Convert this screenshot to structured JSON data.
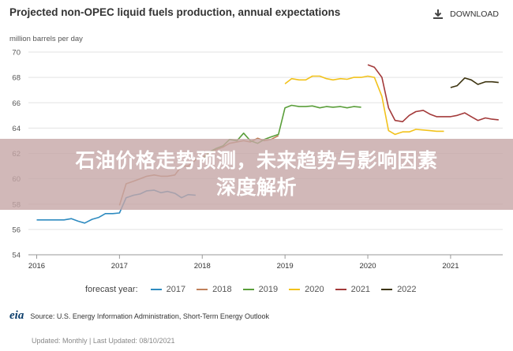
{
  "header": {
    "title": "Projected non-OPEC liquid fuels production, annual expectations",
    "download_label": "DOWNLOAD",
    "download_icon": "download-icon"
  },
  "overlay": {
    "line1": "石油价格走势预测，未来趋势与影响因素",
    "line2": "深度解析"
  },
  "footer": {
    "logo_text": "eia",
    "source": "Source: U.S. Energy Information Administration, Short-Term Energy Outlook",
    "updated": "Updated: Monthly | Last Updated: 08/10/2021"
  },
  "legend": {
    "label": "forecast year:"
  },
  "chart_data": {
    "type": "line",
    "ylabel": "million barrels per day",
    "ylim": [
      54,
      70
    ],
    "yticks": [
      54,
      56,
      58,
      60,
      62,
      64,
      66,
      68,
      70
    ],
    "xlim": [
      2015.9,
      2021.63
    ],
    "xticks": [
      2016,
      2017,
      2018,
      2019,
      2020,
      2021
    ],
    "xtick_labels": [
      "2016",
      "2017",
      "2018",
      "2019",
      "2020",
      "2021"
    ],
    "grid": true,
    "series": [
      {
        "name": "2017",
        "color": "#2e8bc0",
        "points": [
          [
            2016.0,
            56.75
          ],
          [
            2016.08,
            56.75
          ],
          [
            2016.17,
            56.75
          ],
          [
            2016.25,
            56.75
          ],
          [
            2016.33,
            56.75
          ],
          [
            2016.42,
            56.85
          ],
          [
            2016.5,
            56.65
          ],
          [
            2016.58,
            56.5
          ],
          [
            2016.67,
            56.8
          ],
          [
            2016.75,
            56.95
          ],
          [
            2016.83,
            57.25
          ],
          [
            2016.92,
            57.25
          ],
          [
            2017.0,
            57.3
          ],
          [
            2017.08,
            58.5
          ],
          [
            2017.17,
            58.7
          ],
          [
            2017.25,
            58.8
          ],
          [
            2017.33,
            59.05
          ],
          [
            2017.42,
            59.1
          ],
          [
            2017.5,
            58.9
          ],
          [
            2017.58,
            59.0
          ],
          [
            2017.67,
            58.85
          ],
          [
            2017.75,
            58.5
          ],
          [
            2017.83,
            58.75
          ],
          [
            2017.92,
            58.7
          ]
        ]
      },
      {
        "name": "2018",
        "color": "#c0805a",
        "points": [
          [
            2017.0,
            57.9
          ],
          [
            2017.08,
            59.6
          ],
          [
            2017.17,
            59.8
          ],
          [
            2017.25,
            60.0
          ],
          [
            2017.33,
            60.2
          ],
          [
            2017.42,
            60.3
          ],
          [
            2017.5,
            60.2
          ],
          [
            2017.58,
            60.2
          ],
          [
            2017.67,
            60.3
          ],
          [
            2017.75,
            61.0
          ],
          [
            2017.83,
            61.0
          ],
          [
            2017.92,
            61.5
          ],
          [
            2018.0,
            61.7
          ],
          [
            2018.08,
            62.0
          ],
          [
            2018.17,
            62.3
          ],
          [
            2018.25,
            62.5
          ],
          [
            2018.33,
            62.8
          ],
          [
            2018.42,
            62.9
          ],
          [
            2018.5,
            63.0
          ],
          [
            2018.58,
            62.9
          ],
          [
            2018.67,
            63.2
          ],
          [
            2018.75,
            63.0
          ],
          [
            2018.83,
            63.1
          ],
          [
            2018.92,
            63.4
          ]
        ]
      },
      {
        "name": "2019",
        "color": "#5a9e3a",
        "points": [
          [
            2018.0,
            61.5
          ],
          [
            2018.08,
            62.1
          ],
          [
            2018.17,
            62.4
          ],
          [
            2018.25,
            62.6
          ],
          [
            2018.33,
            63.1
          ],
          [
            2018.42,
            63.0
          ],
          [
            2018.5,
            63.6
          ],
          [
            2018.58,
            63.0
          ],
          [
            2018.67,
            62.8
          ],
          [
            2018.75,
            63.1
          ],
          [
            2018.83,
            63.3
          ],
          [
            2018.92,
            63.5
          ],
          [
            2019.0,
            65.6
          ],
          [
            2019.08,
            65.8
          ],
          [
            2019.17,
            65.7
          ],
          [
            2019.25,
            65.7
          ],
          [
            2019.33,
            65.75
          ],
          [
            2019.42,
            65.6
          ],
          [
            2019.5,
            65.7
          ],
          [
            2019.58,
            65.65
          ],
          [
            2019.67,
            65.7
          ],
          [
            2019.75,
            65.6
          ],
          [
            2019.83,
            65.7
          ],
          [
            2019.92,
            65.65
          ]
        ]
      },
      {
        "name": "2020",
        "color": "#f2c21b",
        "points": [
          [
            2019.0,
            67.5
          ],
          [
            2019.08,
            67.9
          ],
          [
            2019.17,
            67.8
          ],
          [
            2019.25,
            67.8
          ],
          [
            2019.33,
            68.1
          ],
          [
            2019.42,
            68.1
          ],
          [
            2019.5,
            67.9
          ],
          [
            2019.58,
            67.8
          ],
          [
            2019.67,
            67.9
          ],
          [
            2019.75,
            67.85
          ],
          [
            2019.83,
            68.0
          ],
          [
            2019.92,
            68.0
          ],
          [
            2020.0,
            68.1
          ],
          [
            2020.08,
            68.0
          ],
          [
            2020.17,
            66.5
          ],
          [
            2020.25,
            63.8
          ],
          [
            2020.33,
            63.5
          ],
          [
            2020.42,
            63.7
          ],
          [
            2020.5,
            63.7
          ],
          [
            2020.58,
            63.9
          ],
          [
            2020.67,
            63.85
          ],
          [
            2020.75,
            63.8
          ],
          [
            2020.83,
            63.75
          ],
          [
            2020.92,
            63.75
          ]
        ]
      },
      {
        "name": "2021",
        "color": "#a33a3a",
        "points": [
          [
            2020.0,
            69.0
          ],
          [
            2020.08,
            68.8
          ],
          [
            2020.17,
            68.0
          ],
          [
            2020.25,
            65.6
          ],
          [
            2020.33,
            64.6
          ],
          [
            2020.42,
            64.5
          ],
          [
            2020.5,
            65.0
          ],
          [
            2020.58,
            65.3
          ],
          [
            2020.67,
            65.4
          ],
          [
            2020.75,
            65.1
          ],
          [
            2020.83,
            64.9
          ],
          [
            2020.92,
            64.9
          ],
          [
            2021.0,
            64.9
          ],
          [
            2021.08,
            65.0
          ],
          [
            2021.17,
            65.2
          ],
          [
            2021.25,
            64.9
          ],
          [
            2021.33,
            64.6
          ],
          [
            2021.42,
            64.8
          ],
          [
            2021.5,
            64.7
          ],
          [
            2021.58,
            64.65
          ]
        ]
      },
      {
        "name": "2022",
        "color": "#3d3410",
        "points": [
          [
            2021.0,
            67.2
          ],
          [
            2021.08,
            67.35
          ],
          [
            2021.17,
            67.95
          ],
          [
            2021.25,
            67.8
          ],
          [
            2021.33,
            67.45
          ],
          [
            2021.42,
            67.65
          ],
          [
            2021.5,
            67.65
          ],
          [
            2021.58,
            67.6
          ]
        ]
      }
    ]
  }
}
